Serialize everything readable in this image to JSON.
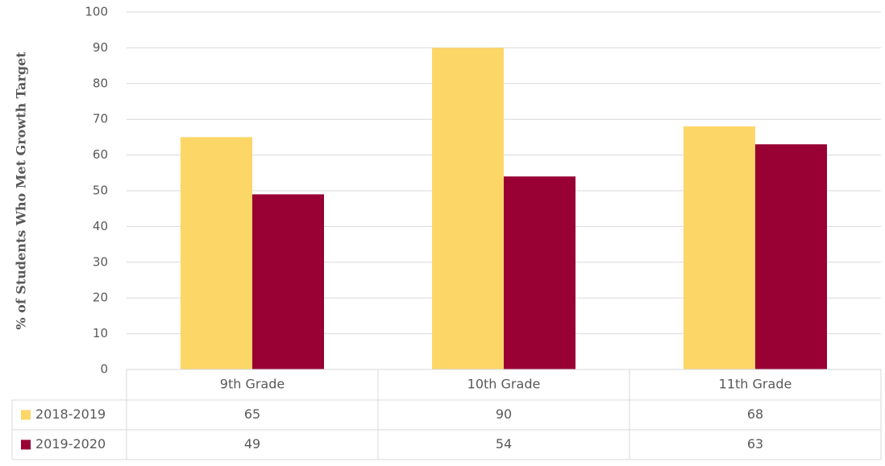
{
  "chart_data": {
    "type": "bar",
    "title": "",
    "xlabel": "",
    "ylabel": "% of Students Who Met Growth Target",
    "categories": [
      "9th Grade",
      "10th Grade",
      "11th Grade"
    ],
    "series": [
      {
        "name": "2018-2019",
        "values": [
          65,
          90,
          68
        ],
        "color": "#FCD667"
      },
      {
        "name": "2019-2020",
        "values": [
          49,
          54,
          63
        ],
        "color": "#990033"
      }
    ],
    "ylim": [
      0,
      100
    ],
    "yticks": [
      0,
      10,
      20,
      30,
      40,
      50,
      60,
      70,
      80,
      90,
      100
    ],
    "grid": true,
    "legend": "data-table-left",
    "data_table": true
  },
  "colors": {
    "grid": "#d9d9d9",
    "text": "#595959"
  }
}
